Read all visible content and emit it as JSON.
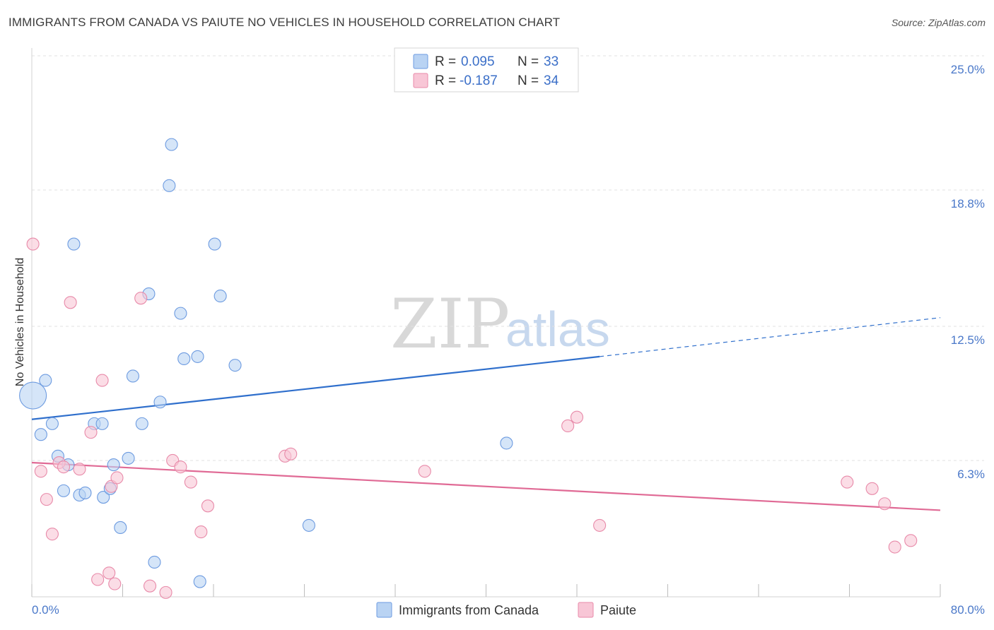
{
  "header": {
    "title": "IMMIGRANTS FROM CANADA VS PAIUTE NO VEHICLES IN HOUSEHOLD CORRELATION CHART",
    "source": "Source: ZipAtlas.com"
  },
  "legend_top": {
    "rows": [
      {
        "r_label": "R =",
        "r_value": "0.095",
        "n_label": "N =",
        "n_value": "33"
      },
      {
        "r_label": "R =",
        "r_value": "-0.187",
        "n_label": "N =",
        "n_value": "34"
      }
    ]
  },
  "watermark": {
    "zip": "ZIP",
    "atlas": "atlas"
  },
  "colors": {
    "canada_fill": "#b9d3f3",
    "canada_stroke": "#6d9be0",
    "canada_line": "#2f6fcc",
    "paiute_fill": "#f8c6d6",
    "paiute_stroke": "#e88aa9",
    "paiute_line": "#e06a95",
    "tick_text": "#4a78c9"
  },
  "chart_data": {
    "type": "scatter",
    "title": "IMMIGRANTS FROM CANADA VS PAIUTE NO VEHICLES IN HOUSEHOLD CORRELATION CHART",
    "xlabel": "",
    "ylabel": "No Vehicles in Household",
    "xlim": [
      0,
      80
    ],
    "ylim": [
      0,
      25
    ],
    "x_tick_labels": [
      "0.0%",
      "80.0%"
    ],
    "y_ticks": [
      6.3,
      12.5,
      18.8,
      25.0
    ],
    "y_tick_labels": [
      "6.3%",
      "12.5%",
      "18.8%",
      "25.0%"
    ],
    "grid": true,
    "legend_position": "bottom-center",
    "series": [
      {
        "name": "Immigrants from Canada",
        "r": 0.095,
        "n": 33,
        "trend": {
          "x0": 0,
          "y0": 8.2,
          "x1": 50,
          "y1": 11.1,
          "dash_x1": 80,
          "dash_y1": 12.9
        },
        "points": [
          {
            "x": 0.1,
            "y": 9.3,
            "big": true
          },
          {
            "x": 0.8,
            "y": 7.5
          },
          {
            "x": 1.2,
            "y": 10.0
          },
          {
            "x": 1.8,
            "y": 8.0
          },
          {
            "x": 2.3,
            "y": 6.5
          },
          {
            "x": 2.8,
            "y": 4.9
          },
          {
            "x": 3.2,
            "y": 6.1
          },
          {
            "x": 3.7,
            "y": 16.3
          },
          {
            "x": 4.2,
            "y": 4.7
          },
          {
            "x": 4.7,
            "y": 4.8
          },
          {
            "x": 5.5,
            "y": 8.0
          },
          {
            "x": 6.2,
            "y": 8.0
          },
          {
            "x": 6.3,
            "y": 4.6
          },
          {
            "x": 6.9,
            "y": 5.0
          },
          {
            "x": 7.2,
            "y": 6.1
          },
          {
            "x": 7.8,
            "y": 3.2
          },
          {
            "x": 8.5,
            "y": 6.4
          },
          {
            "x": 8.9,
            "y": 10.2
          },
          {
            "x": 9.7,
            "y": 8.0
          },
          {
            "x": 10.3,
            "y": 14.0
          },
          {
            "x": 10.8,
            "y": 1.6
          },
          {
            "x": 11.3,
            "y": 9.0
          },
          {
            "x": 12.1,
            "y": 19.0
          },
          {
            "x": 12.3,
            "y": 20.9
          },
          {
            "x": 13.1,
            "y": 13.1
          },
          {
            "x": 13.4,
            "y": 11.0
          },
          {
            "x": 14.6,
            "y": 11.1
          },
          {
            "x": 14.8,
            "y": 0.7
          },
          {
            "x": 16.1,
            "y": 16.3
          },
          {
            "x": 16.6,
            "y": 13.9
          },
          {
            "x": 17.9,
            "y": 10.7
          },
          {
            "x": 24.4,
            "y": 3.3
          },
          {
            "x": 41.8,
            "y": 7.1
          }
        ]
      },
      {
        "name": "Paiute",
        "r": -0.187,
        "n": 34,
        "trend": {
          "x0": 0,
          "y0": 6.2,
          "x1": 80,
          "y1": 4.0
        },
        "points": [
          {
            "x": 0.1,
            "y": 16.3
          },
          {
            "x": 0.8,
            "y": 5.8
          },
          {
            "x": 1.3,
            "y": 4.5
          },
          {
            "x": 1.8,
            "y": 2.9
          },
          {
            "x": 2.4,
            "y": 6.2
          },
          {
            "x": 2.8,
            "y": 6.0
          },
          {
            "x": 3.4,
            "y": 13.6
          },
          {
            "x": 4.2,
            "y": 5.9
          },
          {
            "x": 5.2,
            "y": 7.6
          },
          {
            "x": 5.8,
            "y": 0.8
          },
          {
            "x": 6.2,
            "y": 10.0
          },
          {
            "x": 6.8,
            "y": 1.1
          },
          {
            "x": 7.0,
            "y": 5.1
          },
          {
            "x": 7.3,
            "y": 0.6
          },
          {
            "x": 7.5,
            "y": 5.5
          },
          {
            "x": 9.6,
            "y": 13.8
          },
          {
            "x": 10.4,
            "y": 0.5
          },
          {
            "x": 11.8,
            "y": 0.2
          },
          {
            "x": 12.4,
            "y": 6.3
          },
          {
            "x": 13.1,
            "y": 6.0
          },
          {
            "x": 14.0,
            "y": 5.3
          },
          {
            "x": 14.9,
            "y": 3.0
          },
          {
            "x": 15.5,
            "y": 4.2
          },
          {
            "x": 22.3,
            "y": 6.5
          },
          {
            "x": 22.8,
            "y": 6.6
          },
          {
            "x": 34.6,
            "y": 5.8
          },
          {
            "x": 47.2,
            "y": 7.9
          },
          {
            "x": 48.0,
            "y": 8.3
          },
          {
            "x": 50.0,
            "y": 3.3
          },
          {
            "x": 71.8,
            "y": 5.3
          },
          {
            "x": 74.0,
            "y": 5.0
          },
          {
            "x": 75.1,
            "y": 4.3
          },
          {
            "x": 76.0,
            "y": 2.3
          },
          {
            "x": 77.4,
            "y": 2.6
          }
        ]
      }
    ]
  }
}
